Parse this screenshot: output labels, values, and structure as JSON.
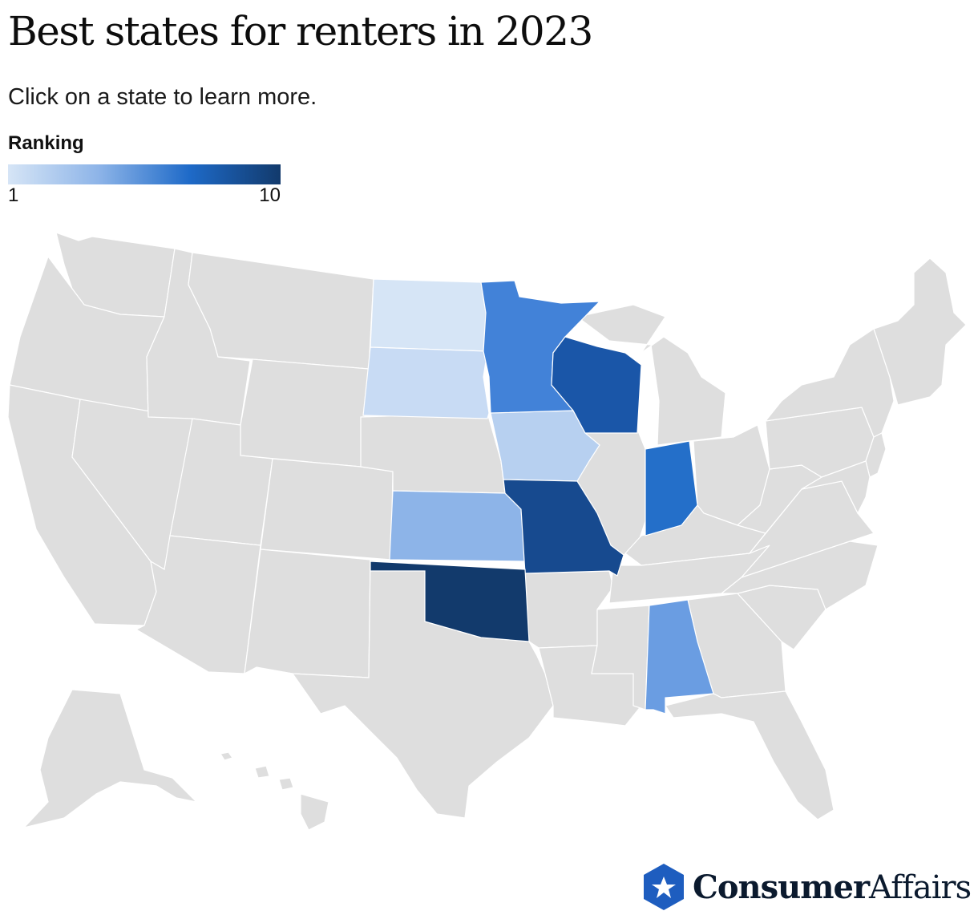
{
  "header": {
    "title": "Best states for renters in 2023",
    "subtitle": "Click on a state to learn more."
  },
  "legend": {
    "title": "Ranking",
    "min_label": "1",
    "max_label": "10",
    "colors": [
      "#d6e5f6",
      "#8db4e8",
      "#1e6ac8",
      "#123a6c"
    ]
  },
  "map": {
    "default_fill": "#dedede",
    "states": [
      {
        "name": "North Dakota",
        "abbr": "ND",
        "rank": 1,
        "color": "#d6e5f6"
      },
      {
        "name": "South Dakota",
        "abbr": "SD",
        "rank": 2,
        "color": "#c8dbf4"
      },
      {
        "name": "Iowa",
        "abbr": "IA",
        "rank": 3,
        "color": "#b7d0f0"
      },
      {
        "name": "Kansas",
        "abbr": "KS",
        "rank": 4,
        "color": "#8db4e8"
      },
      {
        "name": "Alabama",
        "abbr": "AL",
        "rank": 5,
        "color": "#6a9de2"
      },
      {
        "name": "Minnesota",
        "abbr": "MN",
        "rank": 6,
        "color": "#4282d8"
      },
      {
        "name": "Indiana",
        "abbr": "IN",
        "rank": 7,
        "color": "#246fc9"
      },
      {
        "name": "Wisconsin",
        "abbr": "WI",
        "rank": 8,
        "color": "#1a56a8"
      },
      {
        "name": "Missouri",
        "abbr": "MO",
        "rank": 9,
        "color": "#174a8f"
      },
      {
        "name": "Oklahoma",
        "abbr": "OK",
        "rank": 10,
        "color": "#123a6c"
      }
    ]
  },
  "brand": {
    "part1": "Consumer",
    "part2": "Affairs",
    "icon": "star-shield-icon",
    "icon_color": "#1e5dbf"
  }
}
